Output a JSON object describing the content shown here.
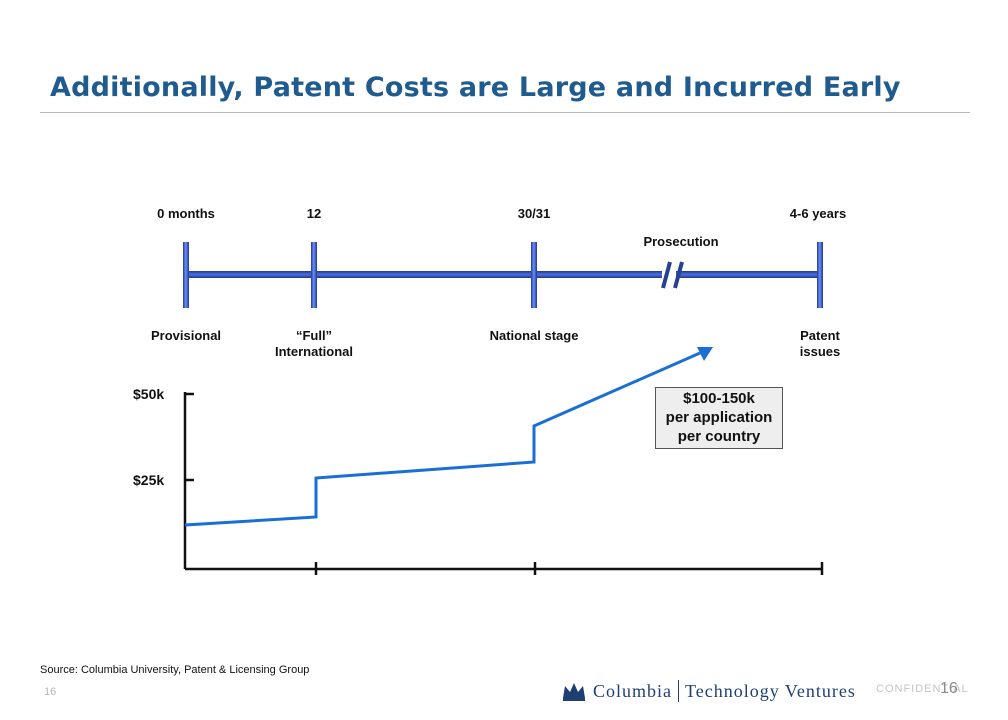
{
  "title": "Additionally, Patent Costs are Large and Incurred Early",
  "timeline": {
    "milestones": [
      {
        "top_label": "0 months",
        "bottom_label": "Provisional",
        "bottom_label_line2": ""
      },
      {
        "top_label": "12",
        "bottom_label": "“Full”",
        "bottom_label_line2": "International"
      },
      {
        "top_label": "30/31",
        "bottom_label": "National stage",
        "bottom_label_line2": ""
      },
      {
        "top_label": "4-6 years",
        "bottom_label": "Patent",
        "bottom_label_line2": "issues"
      }
    ],
    "break_label": "Prosecution"
  },
  "chart_data": {
    "type": "line",
    "y_tick_labels": [
      "$50k",
      "$25k"
    ],
    "callout": {
      "line1": "$100-150k",
      "line2": "per application",
      "line3": "per country"
    }
  },
  "colors": {
    "title": "#1f5b8e",
    "timeline_bar": "#27408f",
    "cost_line": "#1a6fd6"
  },
  "footer": {
    "source": "Source:   Columbia University, Patent & Licensing Group",
    "page_number": "16",
    "logo_left": "Columbia",
    "logo_right": "Technology Ventures",
    "confidential": "CONFIDENTIAL",
    "page_number_right": "16"
  }
}
